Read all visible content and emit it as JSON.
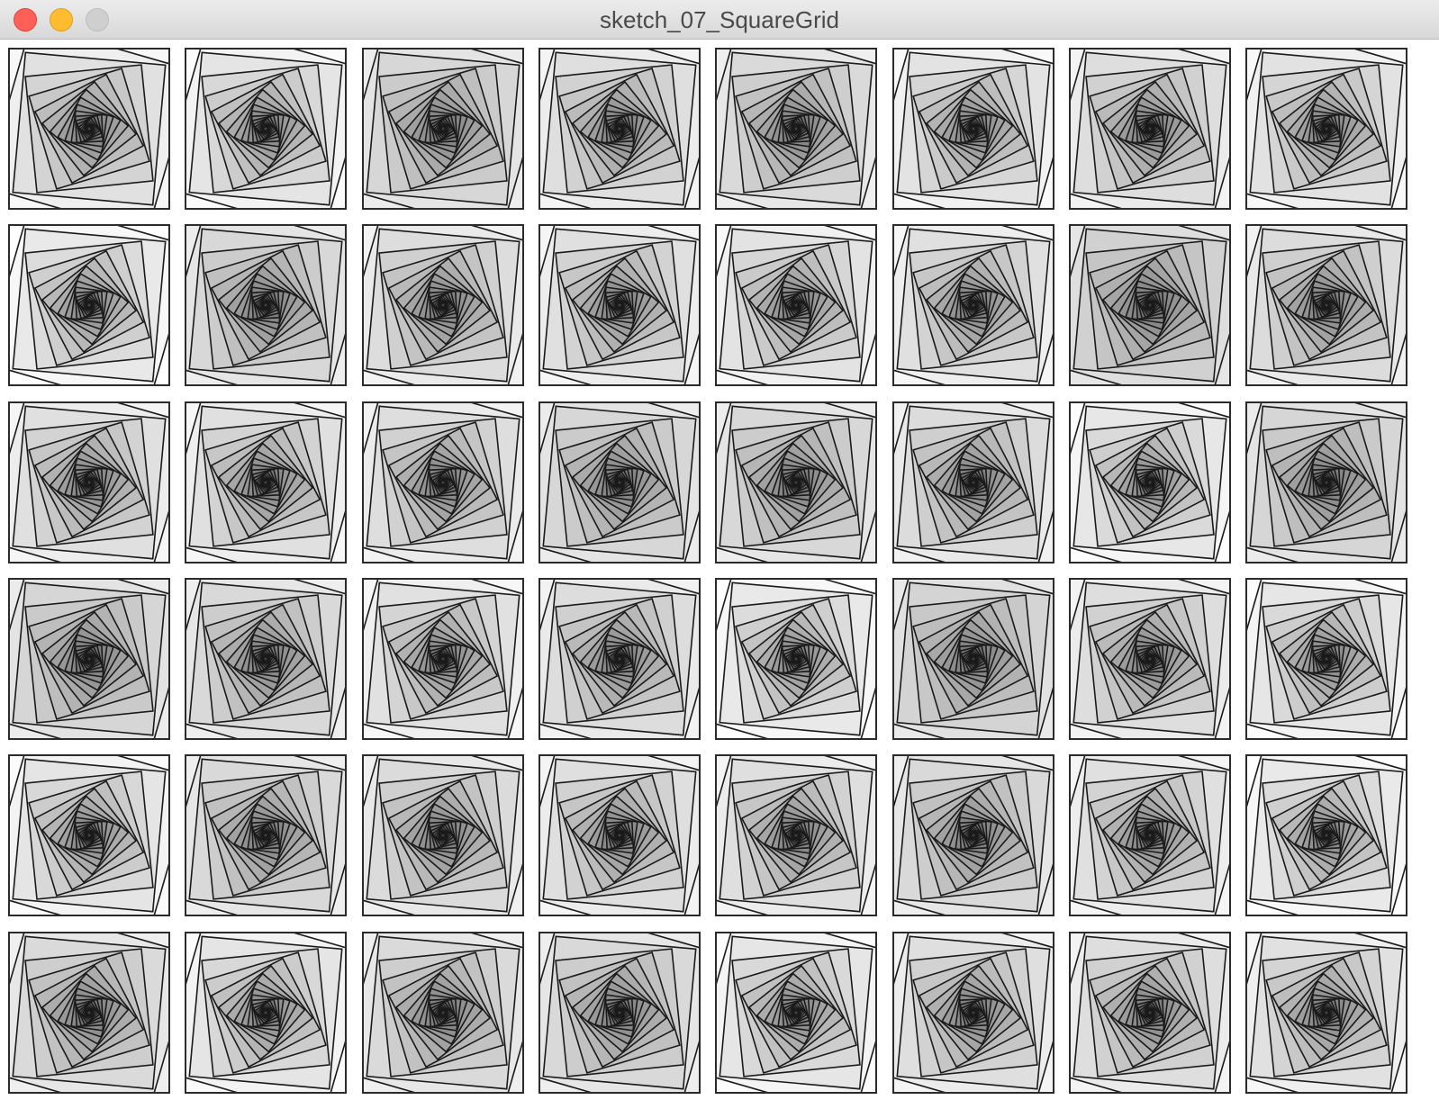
{
  "window": {
    "title": "sketch_07_SquareGrid",
    "controls": [
      "close",
      "minimize",
      "zoom"
    ],
    "colors": {
      "close": "#fe5f57",
      "minimize": "#febc2e",
      "zoom": "#cfcfcf"
    }
  },
  "sketch": {
    "columns": 8,
    "rows": 6,
    "nested_squares_per_tile": 22,
    "rotation_direction": "counter-clockwise spiral",
    "stroke_color": "#1a1a1a",
    "fill_opacity": 0.1,
    "tiles": [
      {
        "bg": "#f7f7f7"
      },
      {
        "bg": "#fbfbfb"
      },
      {
        "bg": "#ececec"
      },
      {
        "bg": "#f4f4f4"
      },
      {
        "bg": "#efefef"
      },
      {
        "bg": "#f9f9f9"
      },
      {
        "bg": "#f3f3f3"
      },
      {
        "bg": "#f8f8f8"
      },
      {
        "bg": "#ffffff"
      },
      {
        "bg": "#ededed"
      },
      {
        "bg": "#f2f2f2"
      },
      {
        "bg": "#f5f5f5"
      },
      {
        "bg": "#f9f9f9"
      },
      {
        "bg": "#f6f6f6"
      },
      {
        "bg": "#e6e6e6"
      },
      {
        "bg": "#f1f1f1"
      },
      {
        "bg": "#f5f5f5"
      },
      {
        "bg": "#f6f6f6"
      },
      {
        "bg": "#f3f3f3"
      },
      {
        "bg": "#ececec"
      },
      {
        "bg": "#ededed"
      },
      {
        "bg": "#f1f1f1"
      },
      {
        "bg": "#fdfdfd"
      },
      {
        "bg": "#ebebeb"
      },
      {
        "bg": "#ebebeb"
      },
      {
        "bg": "#eeeeee"
      },
      {
        "bg": "#f7f7f7"
      },
      {
        "bg": "#f2f2f2"
      },
      {
        "bg": "#ffffff"
      },
      {
        "bg": "#e9e9e9"
      },
      {
        "bg": "#f3f3f3"
      },
      {
        "bg": "#fcfcfc"
      },
      {
        "bg": "#fbfbfb"
      },
      {
        "bg": "#eeeeee"
      },
      {
        "bg": "#f0f0f0"
      },
      {
        "bg": "#f4f4f4"
      },
      {
        "bg": "#f4f4f4"
      },
      {
        "bg": "#eeeeee"
      },
      {
        "bg": "#f5f5f5"
      },
      {
        "bg": "#ffffff"
      },
      {
        "bg": "#efefef"
      },
      {
        "bg": "#fbfbfb"
      },
      {
        "bg": "#efefef"
      },
      {
        "bg": "#eeeeee"
      },
      {
        "bg": "#fcfcfc"
      },
      {
        "bg": "#f4f4f4"
      },
      {
        "bg": "#f3f3f3"
      },
      {
        "bg": "#f7f7f7"
      }
    ]
  }
}
